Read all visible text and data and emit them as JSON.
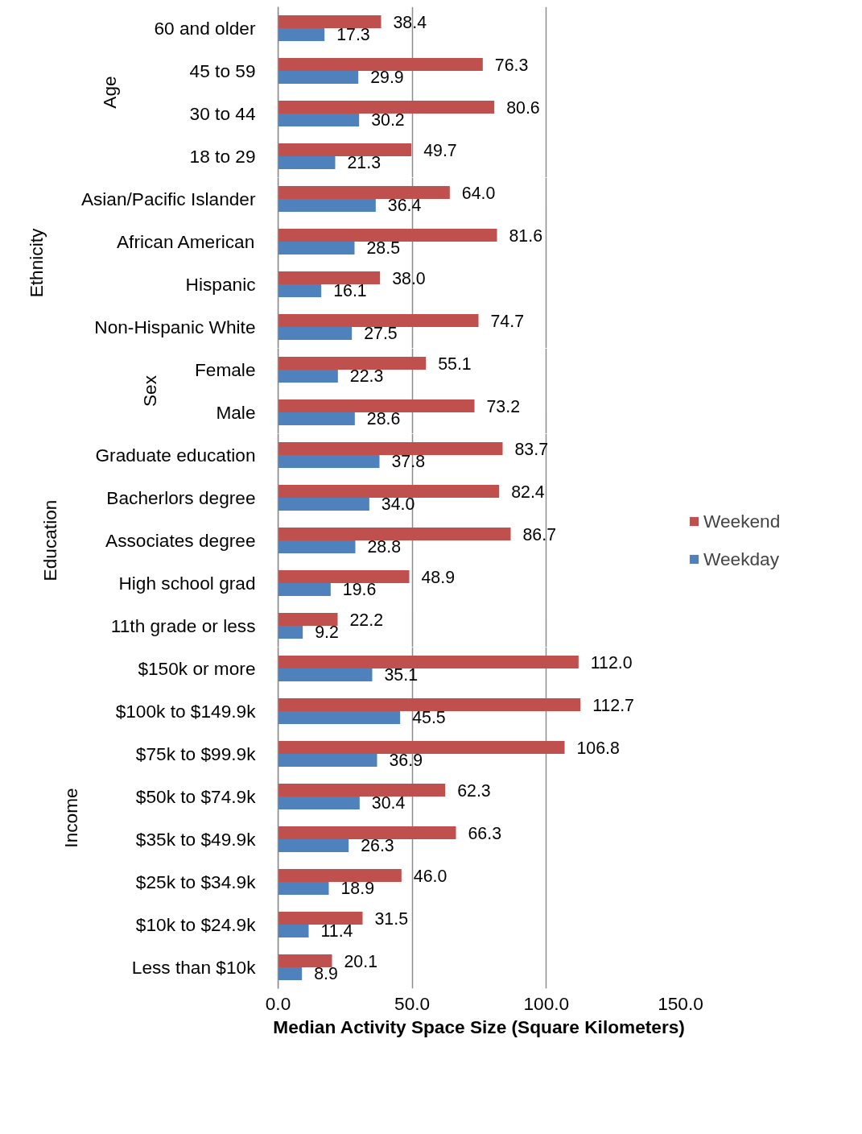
{
  "chart_data": [
    {
      "type": "bar",
      "orientation": "horizontal",
      "ylabel": "Age",
      "categories": [
        "60 and older",
        "45 to 59",
        "30 to 44",
        "18 to 29"
      ],
      "series": [
        {
          "color": "#c0504d",
          "values": [
            38.4,
            76.3,
            80.6,
            49.7
          ],
          "value_labels": [
            "38.4",
            "76.3",
            "80.6",
            "49.7"
          ]
        },
        {
          "color": "#4f81bd",
          "values": [
            17.3,
            29.9,
            30.2,
            21.3
          ],
          "value_labels": [
            "17.3",
            "29.9",
            "30.2",
            "21.3"
          ]
        }
      ],
      "xlim": [
        0,
        150
      ],
      "xticks": [
        0,
        50,
        100,
        150
      ],
      "grid": "x",
      "tick_labels": "y"
    },
    {
      "type": "bar",
      "orientation": "horizontal",
      "ylabel": "Ethnicity",
      "categories": [
        "Asian/Pacific Islander",
        "African American",
        "Hispanic",
        "Non-Hispanic White"
      ],
      "series": [
        {
          "color": "#c0504d",
          "values": [
            64.0,
            81.6,
            38.0,
            74.7
          ],
          "value_labels": [
            "64.0",
            "81.6",
            "38.0",
            "74.7"
          ]
        },
        {
          "color": "#4f81bd",
          "values": [
            36.4,
            28.5,
            16.1,
            27.5
          ],
          "value_labels": [
            "36.4",
            "28.5",
            "16.1",
            "27.5"
          ]
        }
      ],
      "xlim": [
        0,
        150
      ],
      "xticks": [
        0,
        50,
        100,
        150
      ],
      "grid": "x",
      "tick_labels": "y"
    },
    {
      "type": "bar",
      "orientation": "horizontal",
      "ylabel": "Sex",
      "categories": [
        "Female",
        "Male"
      ],
      "series": [
        {
          "color": "#c0504d",
          "values": [
            55.1,
            73.2
          ],
          "value_labels": [
            "55.1",
            "73.2"
          ]
        },
        {
          "color": "#4f81bd",
          "values": [
            22.3,
            28.6
          ],
          "value_labels": [
            "22.3",
            "28.6"
          ]
        }
      ],
      "xlim": [
        0,
        150
      ],
      "xticks": [
        0,
        50,
        100,
        150
      ],
      "grid": "x",
      "tick_labels": "y"
    },
    {
      "type": "bar",
      "orientation": "horizontal",
      "ylabel": "Education",
      "categories": [
        "Graduate education",
        "Bacherlors degree",
        "Associates degree",
        "High school grad",
        "11th grade or less"
      ],
      "series": [
        {
          "name": "Weekend",
          "color": "#c0504d",
          "values": [
            83.7,
            82.4,
            86.7,
            48.9,
            22.2
          ],
          "value_labels": [
            "83.7",
            "82.4",
            "86.7",
            "48.9",
            "22.2"
          ]
        },
        {
          "name": "Weekday",
          "color": "#4f81bd",
          "values": [
            37.8,
            34.0,
            28.8,
            19.6,
            9.2
          ],
          "value_labels": [
            "37.8",
            "34.0",
            "28.8",
            "19.6",
            "9.2"
          ]
        }
      ],
      "xlim": [
        0,
        150
      ],
      "xticks": [
        0,
        50,
        100,
        150
      ],
      "grid": "x",
      "tick_labels": "y",
      "legend": "right"
    },
    {
      "type": "bar",
      "orientation": "horizontal",
      "ylabel": "Income",
      "xlabel": "Median Activity Space Size (Square Kilometers)",
      "categories": [
        "$150k or more",
        "$100k to $149.9k",
        "$75k to $99.9k",
        "$50k to $74.9k",
        "$35k to $49.9k",
        "$25k to $34.9k",
        "$10k to $24.9k",
        "Less than $10k"
      ],
      "series": [
        {
          "color": "#c0504d",
          "values": [
            112.0,
            112.7,
            106.8,
            62.3,
            66.3,
            46.0,
            31.5,
            20.1
          ],
          "value_labels": [
            "112.0",
            "112.7",
            "106.8",
            "62.3",
            "66.3",
            "46.0",
            "31.5",
            "20.1"
          ]
        },
        {
          "color": "#4f81bd",
          "values": [
            35.1,
            45.5,
            36.9,
            30.4,
            26.3,
            18.9,
            11.4,
            8.9
          ],
          "value_labels": [
            "35.1",
            "45.5",
            "36.9",
            "30.4",
            "26.3",
            "18.9",
            "11.4",
            "8.9"
          ]
        }
      ],
      "xlim": [
        0,
        150
      ],
      "xticks": [
        {
          "value": 0,
          "label": "0.0"
        },
        {
          "value": 50,
          "label": "50.0"
        },
        {
          "value": 100,
          "label": "100.0"
        },
        {
          "value": 150,
          "label": "150.0"
        }
      ],
      "grid": "x"
    }
  ]
}
